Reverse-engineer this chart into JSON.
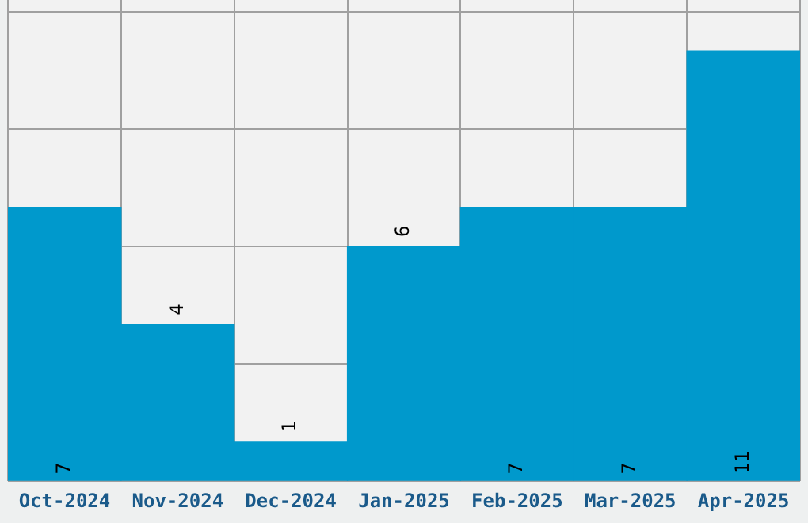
{
  "chart_data": {
    "type": "bar",
    "categories": [
      "Oct-2024",
      "Nov-2024",
      "Dec-2024",
      "Jan-2025",
      "Feb-2025",
      "Mar-2025",
      "Apr-2025"
    ],
    "values": [
      7,
      4,
      1,
      6,
      7,
      7,
      11
    ],
    "color": "#0099cc",
    "ylim": [
      0,
      12.3
    ],
    "yticks": [
      {
        "value": 0,
        "label": null
      },
      {
        "value": 3,
        "label": null
      },
      {
        "value": 6,
        "label": null
      },
      {
        "value": 9,
        "label": null
      },
      {
        "value": 12,
        "label": null
      }
    ],
    "tick_labels": "x",
    "grid": true,
    "data_labels": true
  }
}
